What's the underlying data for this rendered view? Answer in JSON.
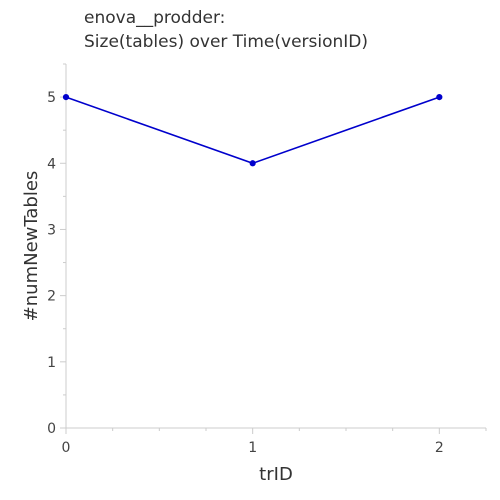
{
  "chart_data": {
    "type": "line",
    "title_lines": [
      "enova__prodder:",
      "Size(tables) over Time(versionID)"
    ],
    "xlabel": "trID",
    "ylabel": "#numNewTables",
    "x": [
      0,
      1,
      2
    ],
    "series": [
      {
        "values": [
          5,
          4,
          5
        ],
        "color": "#0000cc"
      }
    ],
    "xlim": [
      0,
      2.25
    ],
    "ylim": [
      0,
      5.5
    ],
    "x_ticks": [
      0,
      1,
      2
    ],
    "y_ticks": [
      0,
      1,
      2,
      3,
      4,
      5
    ],
    "grid": false,
    "axis_color": "#cccccc"
  }
}
